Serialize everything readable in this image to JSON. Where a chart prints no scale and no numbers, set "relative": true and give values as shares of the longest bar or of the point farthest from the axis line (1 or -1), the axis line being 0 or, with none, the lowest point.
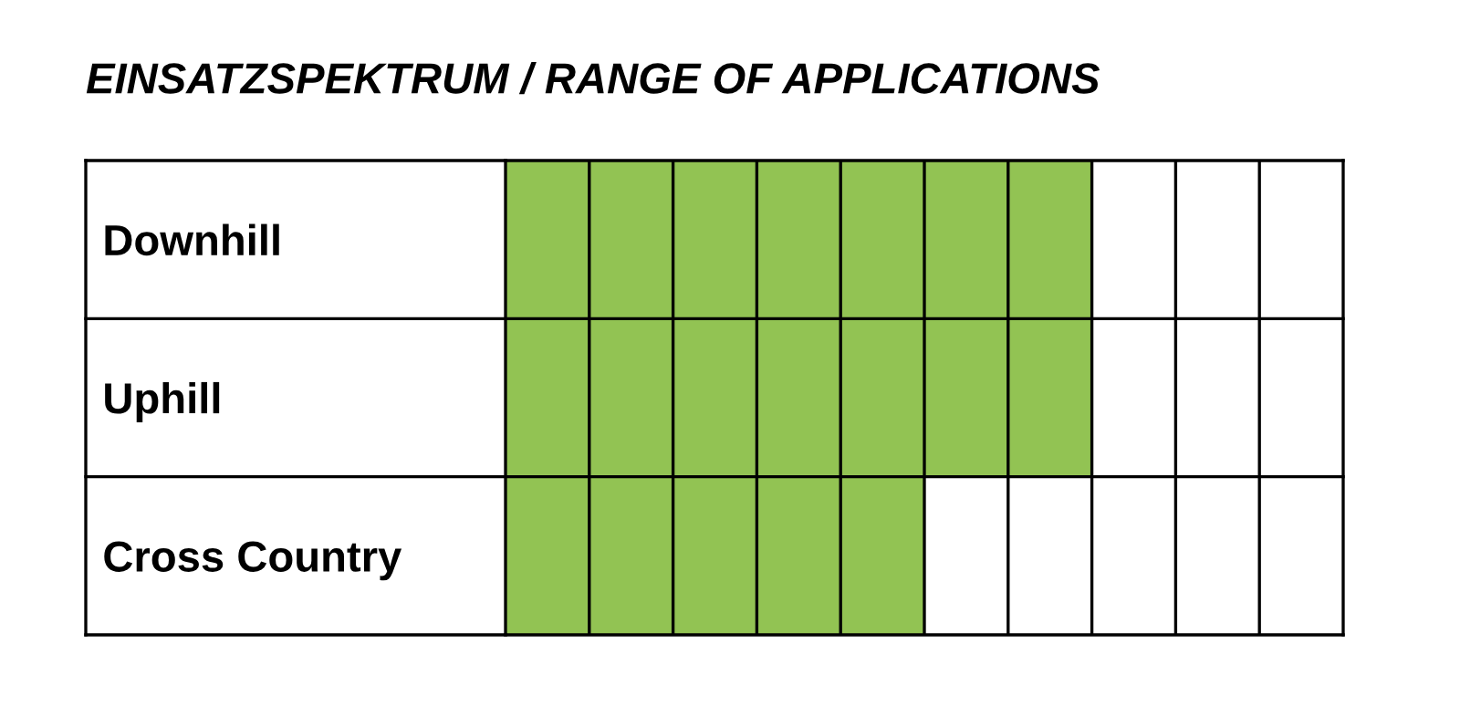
{
  "chart_data": {
    "type": "bar",
    "orientation": "horizontal",
    "title": "EINSATZSPEKTRUM / RANGE OF APPLICATIONS",
    "categories": [
      "Downhill",
      "Uphill",
      "Cross Country"
    ],
    "values": [
      1,
      1,
      0.714
    ],
    "color": "#92c353",
    "relative": true,
    "grid": true
  }
}
